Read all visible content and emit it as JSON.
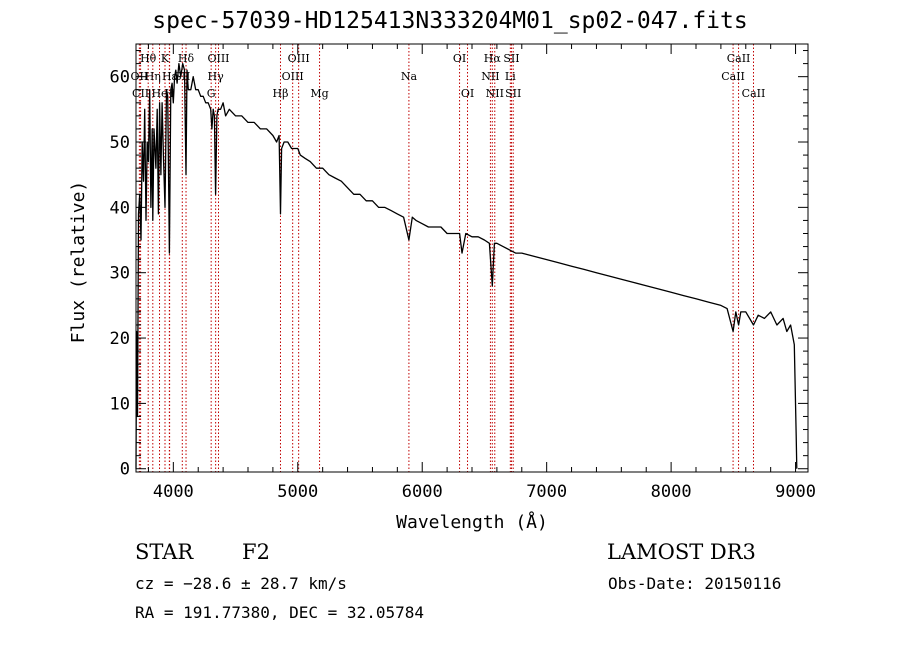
{
  "chart_data": {
    "type": "line",
    "title": "spec-57039-HD125413N333204M01_sp02-047.fits",
    "xlabel": "Wavelength (Å)",
    "ylabel": "Flux (relative)",
    "xlim": [
      3700,
      9100
    ],
    "ylim": [
      -0.5,
      65
    ],
    "x_ticks": [
      4000,
      5000,
      6000,
      7000,
      8000,
      9000
    ],
    "y_ticks": [
      0,
      10,
      20,
      30,
      40,
      50,
      60
    ],
    "grid": false,
    "line_color": "#000000",
    "marker_color": "#c00000",
    "series": [
      {
        "name": "spectrum",
        "x": [
          3700,
          3705,
          3712,
          3720,
          3730,
          3740,
          3750,
          3760,
          3770,
          3780,
          3790,
          3800,
          3810,
          3820,
          3830,
          3835,
          3845,
          3860,
          3870,
          3880,
          3890,
          3900,
          3910,
          3920,
          3933,
          3945,
          3955,
          3968,
          3980,
          3990,
          4000,
          4010,
          4020,
          4030,
          4045,
          4060,
          4075,
          4090,
          4102,
          4110,
          4120,
          4140,
          4160,
          4180,
          4200,
          4220,
          4240,
          4260,
          4280,
          4300,
          4310,
          4320,
          4330,
          4340,
          4350,
          4360,
          4380,
          4400,
          4420,
          4450,
          4500,
          4550,
          4600,
          4650,
          4700,
          4750,
          4800,
          4830,
          4850,
          4861,
          4870,
          4890,
          4920,
          4950,
          4980,
          5000,
          5020,
          5060,
          5100,
          5150,
          5200,
          5250,
          5300,
          5350,
          5400,
          5450,
          5500,
          5550,
          5600,
          5650,
          5700,
          5750,
          5800,
          5850,
          5893,
          5920,
          5950,
          6000,
          6050,
          6100,
          6150,
          6200,
          6250,
          6300,
          6320,
          6350,
          6400,
          6450,
          6500,
          6540,
          6563,
          6580,
          6600,
          6650,
          6700,
          6750,
          6800,
          6900,
          7000,
          7100,
          7200,
          7300,
          7400,
          7500,
          7600,
          7700,
          7800,
          7900,
          8000,
          8100,
          8200,
          8300,
          8400,
          8450,
          8498,
          8520,
          8542,
          8560,
          8600,
          8662,
          8700,
          8750,
          8800,
          8850,
          8900,
          8930,
          8960,
          8990,
          9005,
          9010
        ],
        "y": [
          0,
          21,
          8,
          39,
          42,
          35,
          50,
          44,
          55,
          38,
          50,
          47,
          58,
          40,
          52,
          38,
          52,
          46,
          55,
          39,
          56,
          45,
          56,
          48,
          40,
          58,
          57,
          33,
          58,
          59,
          56,
          60,
          61,
          59,
          62,
          60,
          62,
          61,
          45,
          61,
          58,
          58,
          60,
          58,
          58,
          57,
          57,
          56,
          56,
          55,
          52,
          55,
          54,
          42,
          54,
          55,
          55,
          56,
          54,
          55,
          54,
          54,
          53,
          53,
          52,
          52,
          51,
          50,
          51,
          39,
          49,
          50,
          50,
          49,
          49,
          49,
          48,
          47.5,
          47,
          46,
          46,
          45,
          44.5,
          44,
          43,
          42,
          42,
          41,
          41,
          40,
          40,
          39.5,
          39,
          38.5,
          35,
          38.5,
          38,
          37.5,
          37,
          37,
          37,
          36,
          36,
          36,
          33,
          36,
          35.5,
          35.5,
          35,
          34.5,
          28,
          34.5,
          34.5,
          34,
          33.5,
          33,
          33,
          32.5,
          32,
          31.5,
          31,
          30.5,
          30,
          29.5,
          29,
          28.5,
          28,
          27.5,
          27,
          26.5,
          26,
          25.5,
          25,
          24.5,
          21,
          24,
          22,
          24,
          24,
          22,
          23.5,
          23,
          24,
          22,
          23,
          21,
          22,
          19,
          5,
          0
        ]
      }
    ],
    "line_markers": [
      {
        "label": "Hθ",
        "x": 3798,
        "row": 0
      },
      {
        "label": "OII",
        "x": 3727,
        "row": 1
      },
      {
        "label": "Hη",
        "x": 3835,
        "row": 1
      },
      {
        "label": "CII",
        "x": 3737,
        "row": 2
      },
      {
        "label": "K",
        "x": 3933,
        "row": 0
      },
      {
        "label": "Hε",
        "x": 3970,
        "row": 1
      },
      {
        "label": "He",
        "x": 3889,
        "row": 2
      },
      {
        "label": "H",
        "x": 3968,
        "row": 2
      },
      {
        "label": "Hδ",
        "x": 4102,
        "row": 0
      },
      {
        "label": "SII",
        "x": 4072,
        "row": 1
      },
      {
        "label": "G",
        "x": 4304,
        "row": 2
      },
      {
        "label": "OIII",
        "x": 4363,
        "row": 0
      },
      {
        "label": "Hγ",
        "x": 4340,
        "row": 1
      },
      {
        "label": "Hβ",
        "x": 4861,
        "row": 2
      },
      {
        "label": "OIII",
        "x": 4959,
        "row": 1
      },
      {
        "label": "OIII",
        "x": 5007,
        "row": 0
      },
      {
        "label": "Mg",
        "x": 5175,
        "row": 2
      },
      {
        "label": "Na",
        "x": 5893,
        "row": 1
      },
      {
        "label": "OI",
        "x": 6300,
        "row": 0
      },
      {
        "label": "OI",
        "x": 6364,
        "row": 2
      },
      {
        "label": "Hα",
        "x": 6563,
        "row": 0
      },
      {
        "label": "NII",
        "x": 6548,
        "row": 1
      },
      {
        "label": "NII",
        "x": 6583,
        "row": 2
      },
      {
        "label": "SII",
        "x": 6717,
        "row": 0
      },
      {
        "label": "Li",
        "x": 6708,
        "row": 1
      },
      {
        "label": "SII",
        "x": 6731,
        "row": 2
      },
      {
        "label": "CaII",
        "x": 8542,
        "row": 0
      },
      {
        "label": "CaII",
        "x": 8498,
        "row": 1
      },
      {
        "label": "CaII",
        "x": 8662,
        "row": 2
      }
    ]
  },
  "footer": {
    "object_type": "STAR",
    "subclass": "F2",
    "survey": "LAMOST DR3",
    "cz": "cz = −28.6 ± 28.7 km/s",
    "obs_date": "Obs-Date: 20150116",
    "coords": "RA = 191.77380, DEC =  32.05784"
  }
}
